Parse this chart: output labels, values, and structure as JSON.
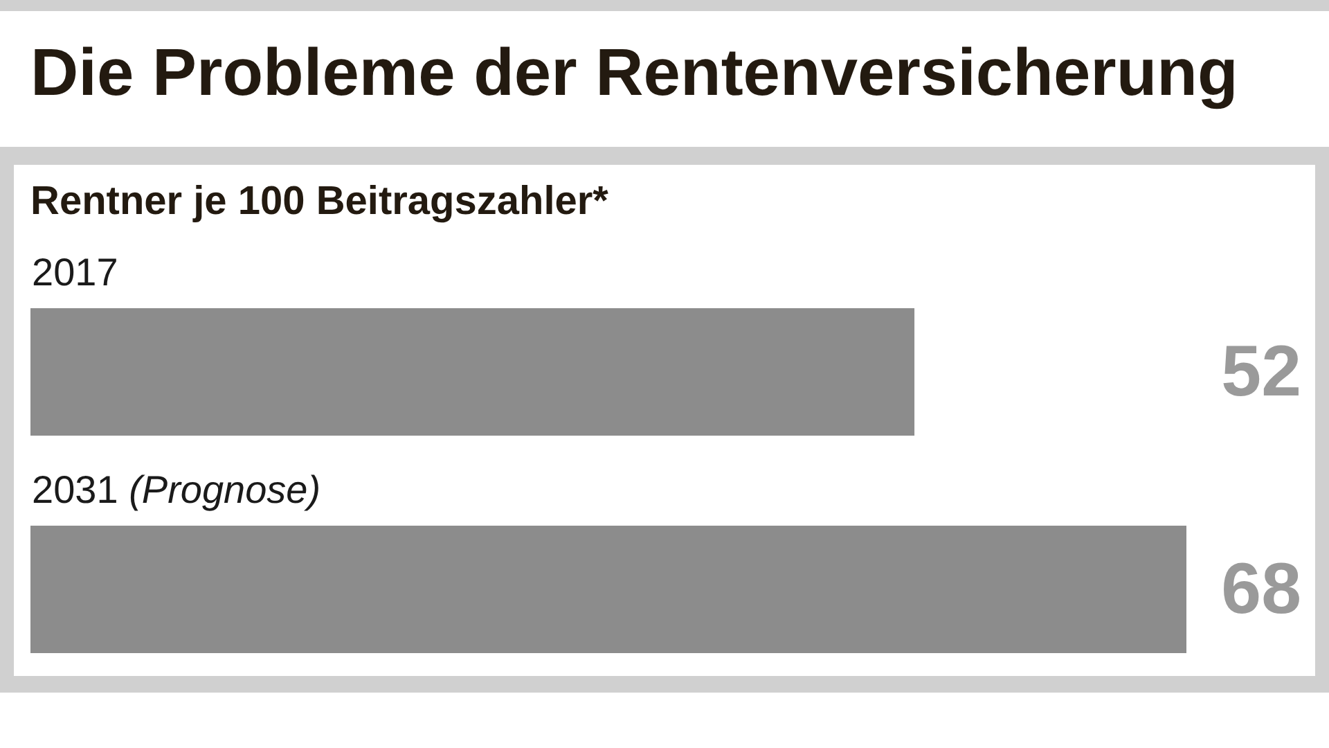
{
  "chart_data": {
    "type": "bar",
    "orientation": "horizontal",
    "title": "Die Probleme der Rentenversicherung",
    "subtitle": "Rentner je 100 Beitragszahler*",
    "categories": [
      "2017",
      "2031 (Prognose)"
    ],
    "values": [
      52,
      68
    ],
    "color": "#8c8c8c",
    "data_labels": true,
    "tick_labels": "y"
  }
}
